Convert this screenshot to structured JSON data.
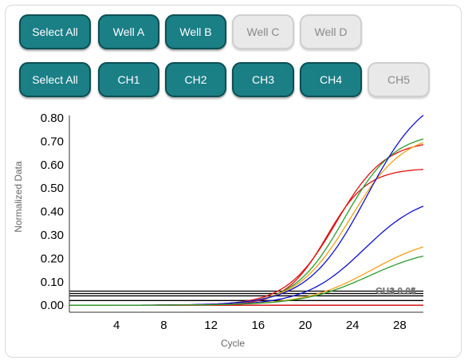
{
  "well_buttons": [
    {
      "label": "Select All",
      "active": true
    },
    {
      "label": "Well A",
      "active": true
    },
    {
      "label": "Well B",
      "active": true
    },
    {
      "label": "Well C",
      "active": false
    },
    {
      "label": "Well D",
      "active": false
    }
  ],
  "channel_buttons": [
    {
      "label": "Select All",
      "active": true
    },
    {
      "label": "CH1",
      "active": true
    },
    {
      "label": "CH2",
      "active": true
    },
    {
      "label": "CH3",
      "active": true
    },
    {
      "label": "CH4",
      "active": true
    },
    {
      "label": "CH5",
      "active": false
    }
  ],
  "chart_data": {
    "type": "line",
    "xlabel": "Cycle",
    "ylabel": "Normalized Data",
    "xlim": [
      0,
      30
    ],
    "ylim": [
      -0.03,
      0.81
    ],
    "xticks": [
      "4",
      "8",
      "12",
      "16",
      "20",
      "24",
      "28"
    ],
    "yticks": [
      "0.00",
      "0.10",
      "0.20",
      "0.30",
      "0.40",
      "0.50",
      "0.60",
      "0.70",
      "0.80"
    ],
    "thresholds": [
      {
        "value": 0.06,
        "label": "CH1 0.06",
        "color": "#000000"
      },
      {
        "value": 0.05,
        "label": "CH2 0.05",
        "color": "#000000"
      },
      {
        "value": 0.04,
        "label": "CH3 0.04",
        "color": "#000000"
      },
      {
        "value": 0.02,
        "label": "",
        "color": "#000000"
      },
      {
        "value": 0.0,
        "label": "",
        "color": "#d40000"
      }
    ],
    "series": [
      {
        "color": "#e01010",
        "plateau": 0.585,
        "midpoint": 21.8,
        "slope": 0.58
      },
      {
        "color": "#e01010",
        "plateau": 0.705,
        "midpoint": 22.6,
        "slope": 0.48
      },
      {
        "color": "#2a9d2a",
        "plateau": 0.74,
        "midpoint": 23.3,
        "slope": 0.47
      },
      {
        "color": "#f5a016",
        "plateau": 0.74,
        "midpoint": 23.8,
        "slope": 0.44
      },
      {
        "color": "#1010d0",
        "plateau": 0.93,
        "midpoint": 25.2,
        "slope": 0.4
      },
      {
        "color": "#1010d0",
        "plateau": 0.48,
        "midpoint": 25.0,
        "slope": 0.4
      },
      {
        "color": "#f5a016",
        "plateau": 0.3,
        "midpoint": 25.6,
        "slope": 0.36
      },
      {
        "color": "#2a9d2a",
        "plateau": 0.25,
        "midpoint": 25.4,
        "slope": 0.36
      }
    ]
  }
}
